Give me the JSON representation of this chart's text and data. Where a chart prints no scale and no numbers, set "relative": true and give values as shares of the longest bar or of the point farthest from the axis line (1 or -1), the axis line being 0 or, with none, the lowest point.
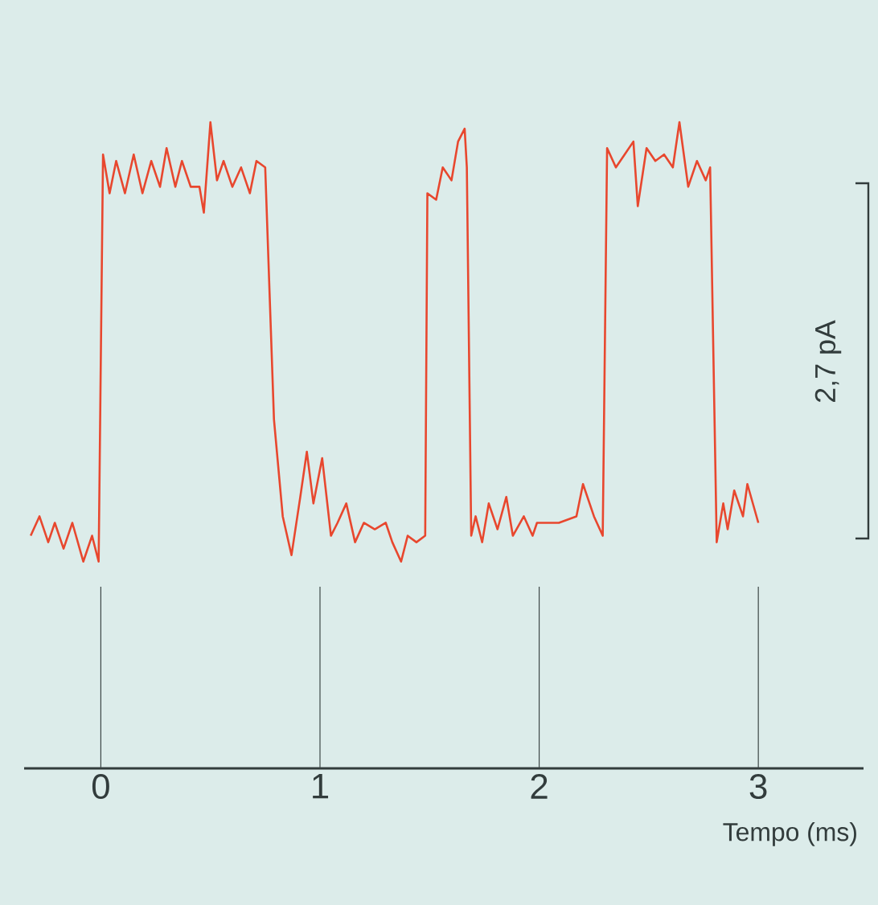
{
  "chart_data": {
    "type": "line",
    "relative": true,
    "xlim": [
      -0.35,
      3.48
    ],
    "xticks": [
      0,
      1,
      2,
      3
    ],
    "xlabel": "Tempo (ms)",
    "annotations": [
      "2,7 pA"
    ],
    "line_style": "solid",
    "ref_lines": [
      {
        "axis": "x",
        "value": 0
      },
      {
        "axis": "x",
        "value": 1
      },
      {
        "axis": "x",
        "value": 2
      },
      {
        "axis": "x",
        "value": 3
      }
    ],
    "x": [
      -0.32,
      -0.28,
      -0.24,
      -0.21,
      -0.17,
      -0.13,
      -0.08,
      -0.04,
      -0.01,
      0.01,
      0.04,
      0.07,
      0.11,
      0.15,
      0.19,
      0.23,
      0.27,
      0.3,
      0.34,
      0.37,
      0.41,
      0.45,
      0.47,
      0.5,
      0.53,
      0.56,
      0.6,
      0.64,
      0.68,
      0.71,
      0.75,
      0.79,
      0.83,
      0.87,
      0.91,
      0.94,
      0.97,
      1.01,
      1.05,
      1.08,
      1.12,
      1.16,
      1.2,
      1.25,
      1.3,
      1.33,
      1.37,
      1.4,
      1.44,
      1.48,
      1.49,
      1.53,
      1.56,
      1.6,
      1.63,
      1.66,
      1.67,
      1.69,
      1.71,
      1.74,
      1.77,
      1.81,
      1.85,
      1.88,
      1.93,
      1.97,
      1.99,
      2.09,
      2.17,
      2.2,
      2.25,
      2.29,
      2.31,
      2.35,
      2.39,
      2.43,
      2.45,
      2.49,
      2.53,
      2.57,
      2.61,
      2.64,
      2.68,
      2.72,
      2.76,
      2.78,
      2.81,
      2.84,
      2.86,
      2.89,
      2.93,
      2.95,
      3.0
    ],
    "series": [
      {
        "color": "#e8472e",
        "values": [
          0.36,
          0.39,
          0.35,
          0.38,
          0.34,
          0.38,
          0.32,
          0.36,
          0.32,
          0.95,
          0.89,
          0.94,
          0.89,
          0.95,
          0.89,
          0.94,
          0.9,
          0.96,
          0.9,
          0.94,
          0.9,
          0.9,
          0.86,
          1.0,
          0.91,
          0.94,
          0.9,
          0.93,
          0.89,
          0.94,
          0.93,
          0.54,
          0.39,
          0.33,
          0.42,
          0.49,
          0.41,
          0.48,
          0.36,
          0.38,
          0.41,
          0.35,
          0.38,
          0.37,
          0.38,
          0.35,
          0.32,
          0.36,
          0.35,
          0.36,
          0.89,
          0.88,
          0.93,
          0.91,
          0.97,
          0.99,
          0.93,
          0.36,
          0.39,
          0.35,
          0.41,
          0.37,
          0.42,
          0.36,
          0.39,
          0.36,
          0.38,
          0.38,
          0.39,
          0.44,
          0.39,
          0.36,
          0.96,
          0.93,
          0.95,
          0.97,
          0.87,
          0.96,
          0.94,
          0.95,
          0.93,
          1.0,
          0.9,
          0.94,
          0.91,
          0.93,
          0.35,
          0.41,
          0.37,
          0.43,
          0.39,
          0.44,
          0.38
        ]
      }
    ]
  }
}
